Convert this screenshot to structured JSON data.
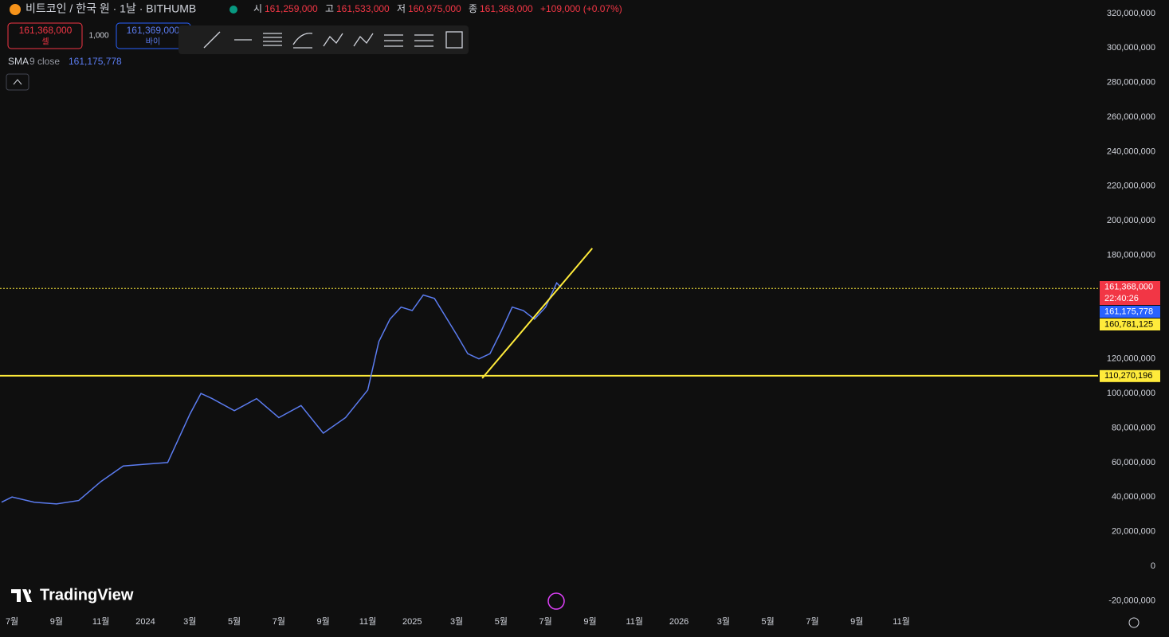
{
  "header": {
    "symbol": "비트코인 / 한국 원 · 1날 · BITHUMB",
    "open_label": "시",
    "open": "161,259,000",
    "high_label": "고",
    "high": "161,533,000",
    "low_label": "저",
    "low": "160,975,000",
    "close_label": "종",
    "close": "161,368,000",
    "change": "+109,000 (+0.07%)"
  },
  "trade": {
    "sell_price": "161,368,000",
    "sell": "셀",
    "qty": "1,000",
    "buy_price": "161,369,000",
    "buy": "바이"
  },
  "indicator": {
    "name": "SMA",
    "params": "9 close",
    "value": "161,175,778"
  },
  "brand": "TradingView",
  "chart_data": {
    "type": "line",
    "x": [
      -0.47,
      0,
      1,
      2,
      3,
      4,
      5,
      6,
      7,
      8,
      8.5,
      9,
      10,
      11,
      12,
      13,
      14,
      15,
      16,
      16.5,
      17,
      17.5,
      18,
      18.5,
      19,
      20,
      20.5,
      21,
      21.5,
      22,
      22.5,
      23,
      23.5,
      24,
      24.5,
      24.7
    ],
    "series": [
      {
        "name": "BTC/KRW",
        "color": "#5b7cf0",
        "values": [
          37000000,
          40000000,
          37000000,
          36000000,
          38000000,
          49000000,
          58000000,
          59000000,
          60000000,
          88000000,
          100000000,
          97000000,
          90000000,
          97000000,
          86000000,
          93000000,
          77000000,
          86000000,
          102000000,
          130000000,
          143000000,
          150000000,
          148000000,
          157000000,
          155000000,
          134000000,
          123000000,
          120000000,
          123000000,
          136000000,
          150000000,
          148000000,
          143000000,
          150000000,
          164000000,
          161368000
        ]
      }
    ],
    "xlim": [
      -0.54,
      48.85
    ],
    "ylim": [
      -27200000,
      327800000
    ],
    "xticks": [
      {
        "value": 0,
        "label": "7월"
      },
      {
        "value": 2,
        "label": "9월"
      },
      {
        "value": 4,
        "label": "11월"
      },
      {
        "value": 6,
        "label": "2024"
      },
      {
        "value": 8,
        "label": "3월"
      },
      {
        "value": 10,
        "label": "5월"
      },
      {
        "value": 12,
        "label": "7월"
      },
      {
        "value": 14,
        "label": "9월"
      },
      {
        "value": 16,
        "label": "11월"
      },
      {
        "value": 18,
        "label": "2025"
      },
      {
        "value": 20,
        "label": "3월"
      },
      {
        "value": 22,
        "label": "5월"
      },
      {
        "value": 24,
        "label": "7월"
      },
      {
        "value": 26,
        "label": "9월"
      },
      {
        "value": 28,
        "label": "11월"
      },
      {
        "value": 30,
        "label": "2026"
      },
      {
        "value": 32,
        "label": "3월"
      },
      {
        "value": 34,
        "label": "5월"
      },
      {
        "value": 36,
        "label": "7월"
      },
      {
        "value": 38,
        "label": "9월"
      },
      {
        "value": 40,
        "label": "11월"
      }
    ],
    "yticks": [
      {
        "value": -20000000,
        "label": "-20,000,000"
      },
      0,
      {
        "value": 20000000,
        "label": "20,000,000"
      },
      {
        "value": 40000000,
        "label": "40,000,000"
      },
      {
        "value": 60000000,
        "label": "60,000,000"
      },
      {
        "value": 80000000,
        "label": "80,000,000"
      },
      {
        "value": 100000000,
        "label": "100,000,000"
      },
      {
        "value": 120000000,
        "label": "120,000,000"
      },
      {
        "value": 140000000,
        "label": "140,000,000"
      },
      {
        "value": 160000000,
        "label": "160,000,000"
      },
      {
        "value": 180000000,
        "label": "180,000,000"
      },
      {
        "value": 200000000,
        "label": "200,000,000"
      },
      {
        "value": 220000000,
        "label": "220,000,000"
      },
      {
        "value": 240000000,
        "label": "240,000,000"
      },
      {
        "value": 260000000,
        "label": "260,000,000"
      },
      {
        "value": 280000000,
        "label": "280,000,000"
      },
      {
        "value": 300000000,
        "label": "300,000,000"
      },
      {
        "value": 320000000,
        "label": "320,000,000"
      }
    ],
    "hlines": [
      {
        "value": 160781125,
        "label": "160,781,125",
        "color": "#ffeb3b",
        "style": "dotted"
      },
      {
        "value": 110270196,
        "label": "110,270,196",
        "color": "#ffeb3b",
        "style": "solid"
      }
    ],
    "trendline": {
      "x": [
        21.15,
        26.1
      ],
      "values": [
        108800000,
        184000000
      ],
      "color": "#ffeb3b"
    },
    "price_labels": [
      {
        "value": 161368000,
        "label": "161,368,000",
        "color": "#f23645"
      },
      {
        "value": 161175778,
        "label": "161,175,778",
        "color": "#2962ff"
      }
    ],
    "countdown": "22:40:26"
  }
}
